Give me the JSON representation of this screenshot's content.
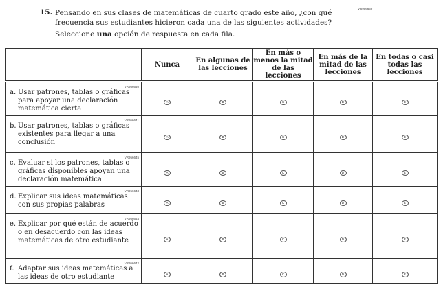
{
  "question": {
    "code": "VR956639",
    "number": "15.",
    "text": "Pensando en sus clases de matemáticas de cuarto grado este año, ¿con qué frecuencia sus estudiantes hicieron cada una de las siguientes actividades?",
    "instruction_pre": "Seleccione ",
    "instruction_bold": "una",
    "instruction_post": " opción de respuesta en cada fila."
  },
  "columns": [
    "Nunca",
    "En algunas de las lecciones",
    "En más o menos la mitad de las lecciones",
    "En más de la mitad de las lecciones",
    "En todas o casi todas las lecciones"
  ],
  "bubbles": [
    "A",
    "B",
    "C",
    "D",
    "E"
  ],
  "rows": [
    {
      "code": "VR956640",
      "letter": "a.",
      "text": "Usar patrones, tablas o gráficas para apoyar una declaración matemática cierta"
    },
    {
      "code": "VR956641",
      "letter": "b.",
      "text": "Usar patrones, tablas o gráficas existentes para llegar a una conclusión"
    },
    {
      "code": "VR956645",
      "letter": "c.",
      "text": "Evaluar si los patrones, tablas o gráficas disponibles apoyan una declaración matemática"
    },
    {
      "code": "VR956643",
      "letter": "d.",
      "text": "Explicar sus ideas matemáticas con sus propias palabras"
    },
    {
      "code": "VR956644",
      "letter": "e.",
      "text": "Explicar por qué están de acuerdo o en desacuerdo con las ideas matemáticas de otro estudiante"
    },
    {
      "code": "VR956642",
      "letter": "f.",
      "text": "Adaptar sus ideas matemáticas a las ideas de otro estudiante"
    }
  ]
}
